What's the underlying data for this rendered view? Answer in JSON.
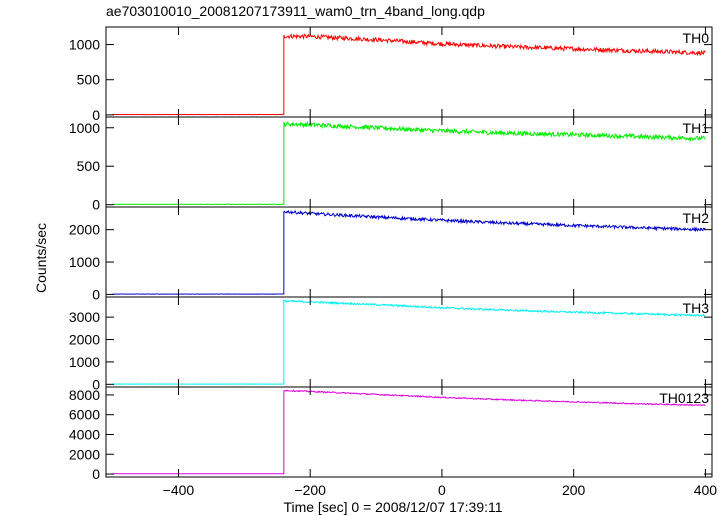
{
  "chart_data": {
    "type": "line",
    "title": "ae703010010_20081207173911_wam0_trn_4band_long.qdp",
    "xlabel": "Time [sec] 0 = 2008/12/07 17:39:11",
    "ylabel": "Counts/sec",
    "xlim": [
      -510,
      410
    ],
    "xticks": [
      -400,
      -200,
      0,
      200,
      400
    ],
    "xtick_labels": [
      "−400",
      "−200",
      "0",
      "200",
      "400"
    ],
    "grid": false,
    "legend": "per-panel label at top-right",
    "series": [
      {
        "name": "TH0",
        "color": "#ff0000",
        "ylim": [
          -30,
          1250
        ],
        "yticks": [
          0,
          500,
          1000
        ],
        "baseline": 5,
        "onset_time": -240,
        "points": [
          [
            -500,
            5
          ],
          [
            -241,
            5
          ],
          [
            -240,
            1120
          ],
          [
            -200,
            1115
          ],
          [
            -100,
            1070
          ],
          [
            0,
            1010
          ],
          [
            100,
            970
          ],
          [
            200,
            940
          ],
          [
            300,
            910
          ],
          [
            400,
            880
          ]
        ],
        "noise": 30
      },
      {
        "name": "TH1",
        "color": "#00ee00",
        "ylim": [
          -30,
          1140
        ],
        "yticks": [
          0,
          500,
          1000
        ],
        "baseline": 5,
        "onset_time": -240,
        "points": [
          [
            -500,
            5
          ],
          [
            -241,
            5
          ],
          [
            -240,
            1050
          ],
          [
            -200,
            1040
          ],
          [
            -100,
            1000
          ],
          [
            0,
            960
          ],
          [
            100,
            930
          ],
          [
            200,
            910
          ],
          [
            300,
            885
          ],
          [
            400,
            860
          ]
        ],
        "noise": 28
      },
      {
        "name": "TH2",
        "color": "#0000cc",
        "ylim": [
          -80,
          2700
        ],
        "yticks": [
          0,
          1000,
          2000
        ],
        "baseline": 10,
        "onset_time": -240,
        "points": [
          [
            -500,
            10
          ],
          [
            -241,
            10
          ],
          [
            -240,
            2560
          ],
          [
            -200,
            2500
          ],
          [
            -100,
            2390
          ],
          [
            0,
            2290
          ],
          [
            100,
            2200
          ],
          [
            200,
            2130
          ],
          [
            300,
            2060
          ],
          [
            400,
            2000
          ]
        ],
        "noise": 45
      },
      {
        "name": "TH3",
        "color": "#00f0f0",
        "ylim": [
          -120,
          3900
        ],
        "yticks": [
          0,
          1000,
          2000,
          3000
        ],
        "baseline": 10,
        "onset_time": -240,
        "points": [
          [
            -500,
            10
          ],
          [
            -241,
            10
          ],
          [
            -240,
            3720
          ],
          [
            -200,
            3680
          ],
          [
            -100,
            3560
          ],
          [
            0,
            3420
          ],
          [
            100,
            3310
          ],
          [
            200,
            3220
          ],
          [
            300,
            3150
          ],
          [
            400,
            3070
          ]
        ],
        "noise": 40
      },
      {
        "name": "TH0123",
        "color": "#e000e0",
        "ylim": [
          -300,
          8800
        ],
        "yticks": [
          0,
          2000,
          4000,
          6000,
          8000
        ],
        "baseline": 30,
        "onset_time": -240,
        "points": [
          [
            -500,
            30
          ],
          [
            -241,
            30
          ],
          [
            -240,
            8450
          ],
          [
            -200,
            8350
          ],
          [
            -100,
            8050
          ],
          [
            0,
            7750
          ],
          [
            100,
            7500
          ],
          [
            200,
            7300
          ],
          [
            300,
            7100
          ],
          [
            400,
            6950
          ]
        ],
        "noise": 60
      }
    ]
  }
}
